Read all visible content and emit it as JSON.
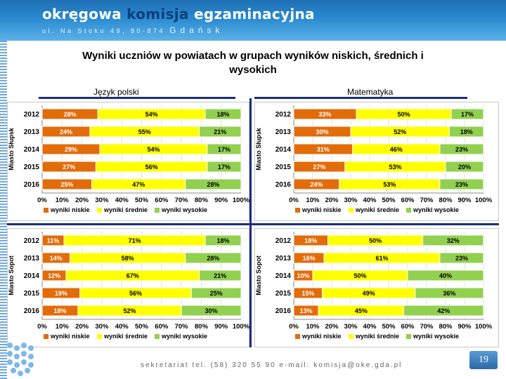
{
  "header": {
    "brand_part1": "okręgowa",
    "brand_part2": "komisja",
    "brand_part3": "egzaminacyjna",
    "address": "ul. Na Stoku 49, 80-874",
    "city": "Gdańsk"
  },
  "title_line1": "Wyniki uczniów w powiatach w grupach wyników niskich, średnich i",
  "title_line2": "wysokich",
  "subjects": {
    "left": "Język polski",
    "right": "Matematyka"
  },
  "colors": {
    "low": "#E36C0A",
    "mid": "#FFFF00",
    "high": "#92D050"
  },
  "chart_data": [
    {
      "type": "bar",
      "stacked": "horizontal-100%",
      "title": "Język polski",
      "ylabel": "Miasto Słupsk",
      "categories": [
        "2012",
        "2013",
        "2014",
        "2015",
        "2016"
      ],
      "series": [
        {
          "name": "wyniki niskie",
          "values": [
            28,
            24,
            29,
            27,
            25
          ]
        },
        {
          "name": "wyniki średnie",
          "values": [
            54,
            55,
            54,
            56,
            47
          ]
        },
        {
          "name": "wyniki wysokie",
          "values": [
            18,
            21,
            17,
            17,
            28
          ]
        }
      ],
      "xticks": [
        "0%",
        "10%",
        "20%",
        "30%",
        "40%",
        "50%",
        "60%",
        "70%",
        "80%",
        "90%",
        "100%"
      ],
      "legend": "bottom"
    },
    {
      "type": "bar",
      "stacked": "horizontal-100%",
      "title": "Matematyka",
      "ylabel": "Miasto Słupsk",
      "categories": [
        "2012",
        "2013",
        "2014",
        "2015",
        "2016"
      ],
      "series": [
        {
          "name": "wyniki niskie",
          "values": [
            33,
            30,
            31,
            27,
            24
          ]
        },
        {
          "name": "wyniki średnie",
          "values": [
            50,
            52,
            46,
            53,
            53
          ]
        },
        {
          "name": "wyniki wysokie",
          "values": [
            17,
            18,
            23,
            20,
            23
          ]
        }
      ],
      "xticks": [
        "0%",
        "10%",
        "20%",
        "30%",
        "40%",
        "50%",
        "60%",
        "70%",
        "80%",
        "90%",
        "100%"
      ],
      "legend": "bottom"
    },
    {
      "type": "bar",
      "stacked": "horizontal-100%",
      "title": "Język polski",
      "ylabel": "Miasto Sopot",
      "categories": [
        "2012",
        "2013",
        "2014",
        "2015",
        "2016"
      ],
      "series": [
        {
          "name": "wyniki niskie",
          "values": [
            11,
            14,
            12,
            19,
            18
          ]
        },
        {
          "name": "wyniki średnie",
          "values": [
            71,
            58,
            67,
            56,
            52
          ]
        },
        {
          "name": "wyniki wysokie",
          "values": [
            18,
            28,
            21,
            25,
            30
          ]
        }
      ],
      "xticks": [
        "0%",
        "10%",
        "20%",
        "30%",
        "40%",
        "50%",
        "60%",
        "70%",
        "80%",
        "90%",
        "100%"
      ],
      "legend": "bottom"
    },
    {
      "type": "bar",
      "stacked": "horizontal-100%",
      "title": "Matematyka",
      "ylabel": "Miasto Sopot",
      "categories": [
        "2012",
        "2013",
        "2014",
        "2015",
        "2016"
      ],
      "series": [
        {
          "name": "wyniki niskie",
          "values": [
            18,
            16,
            10,
            15,
            13
          ]
        },
        {
          "name": "wyniki średnie",
          "values": [
            50,
            61,
            50,
            49,
            45
          ]
        },
        {
          "name": "wyniki wysokie",
          "values": [
            32,
            23,
            40,
            36,
            42
          ]
        }
      ],
      "xticks": [
        "0%",
        "10%",
        "20%",
        "30%",
        "40%",
        "50%",
        "60%",
        "70%",
        "80%",
        "90%",
        "100%"
      ],
      "legend": "bottom"
    }
  ],
  "footer": "sekretariat tel. (58) 320 55 90 e-mail: komisja@oke.gda.pl",
  "page_number": "19"
}
